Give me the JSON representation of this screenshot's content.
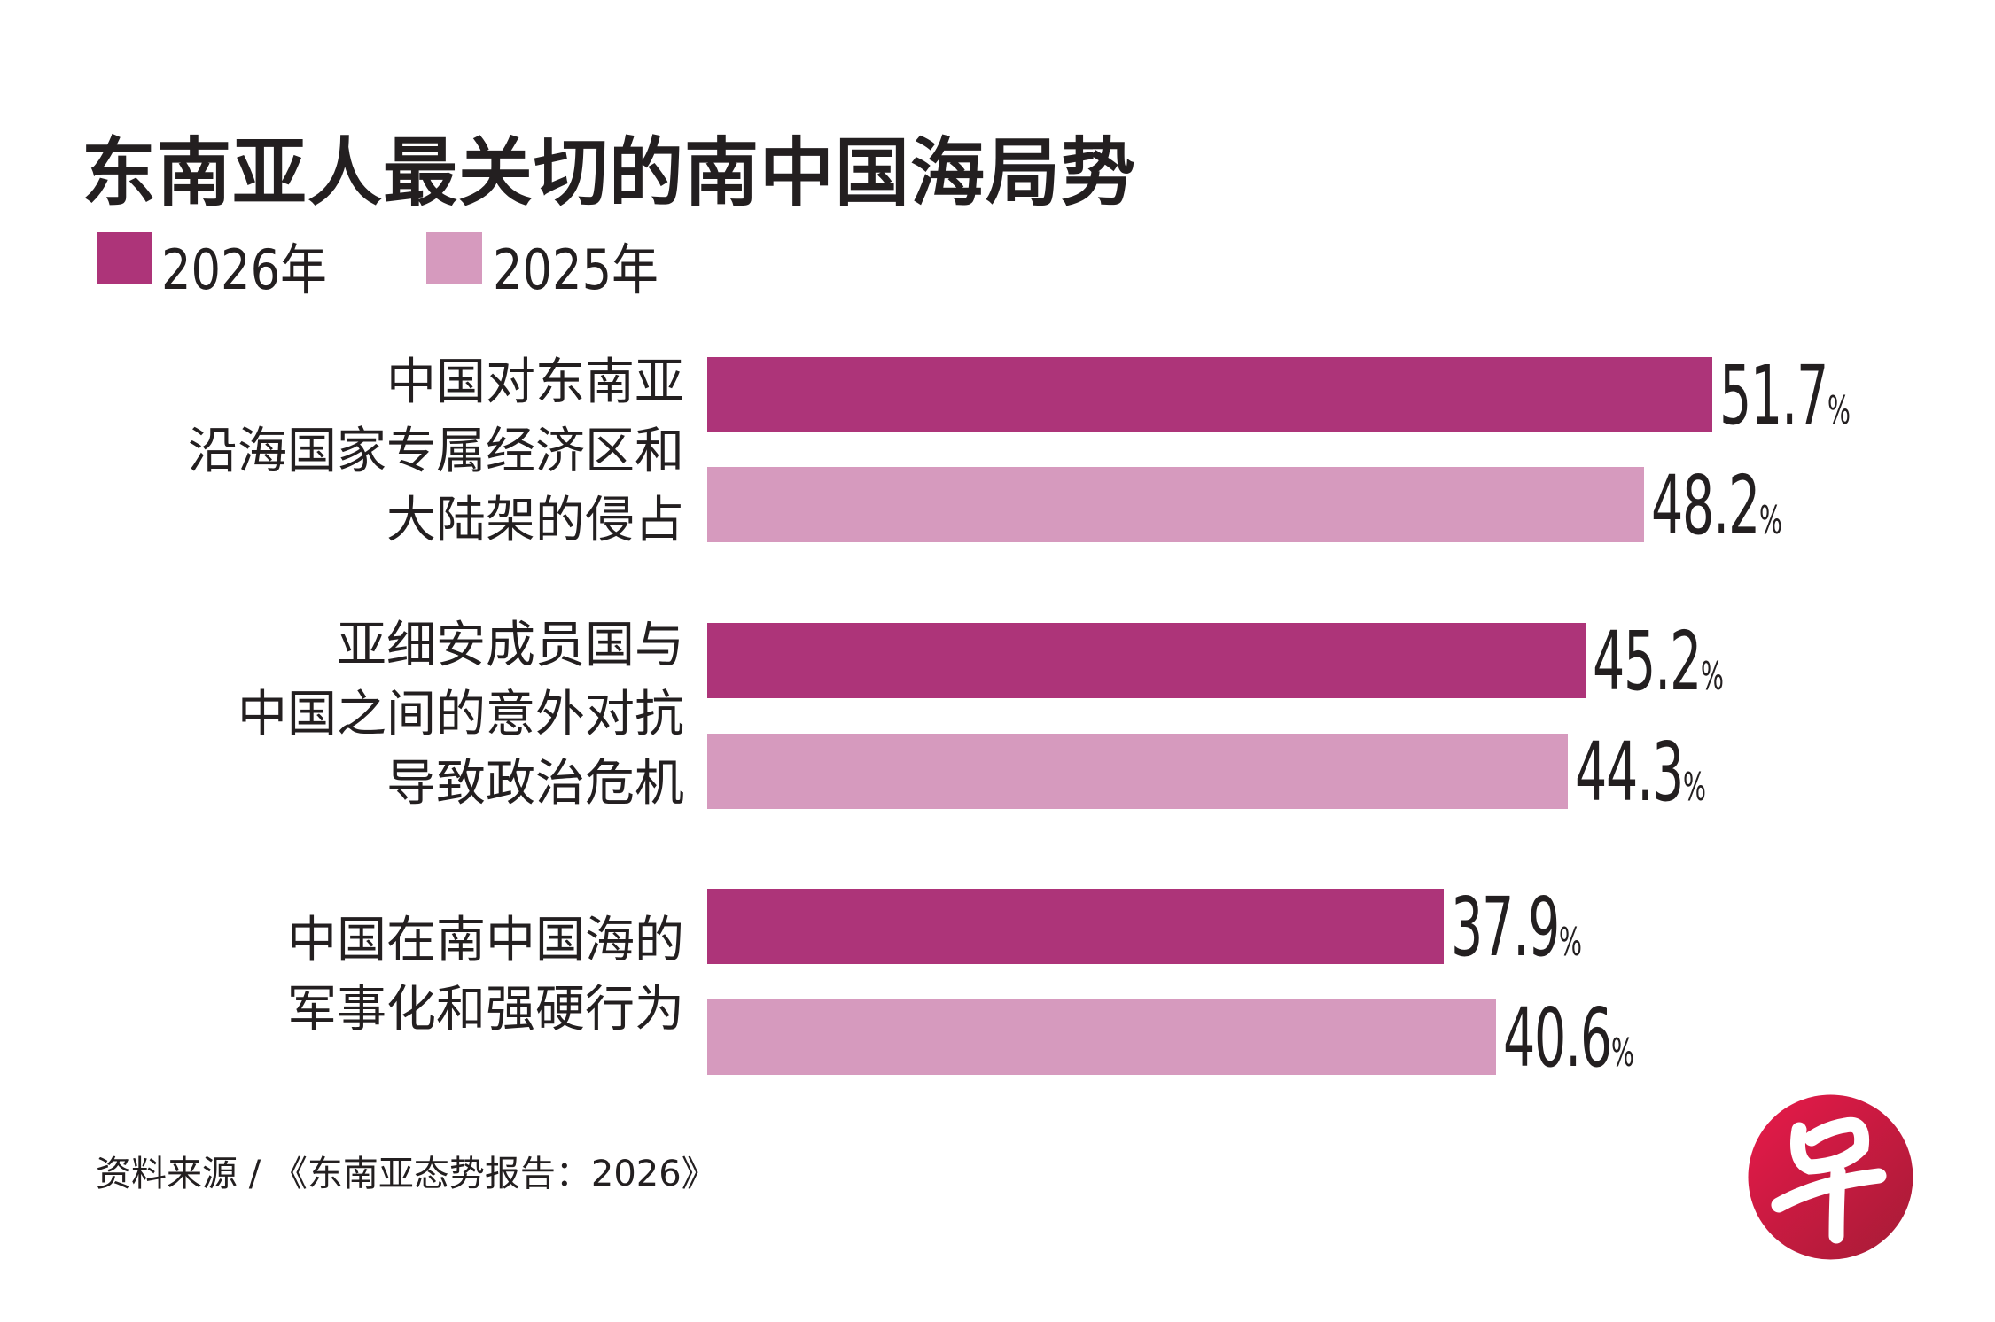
{
  "chart_data": {
    "type": "bar",
    "orientation": "horizontal",
    "title": "东南亚人最关切的南中国海局势",
    "categories": [
      [
        "中国对东南亚",
        "沿海国家专属经济区和",
        "大陆架的侵占"
      ],
      [
        "亚细安成员国与",
        "中国之间的意外对抗",
        "导致政治危机"
      ],
      [
        "中国在南中国海的",
        "军事化和强硬行为"
      ]
    ],
    "series": [
      {
        "name": "2026年",
        "color": "#AD3479",
        "values": [
          51.7,
          45.2,
          37.9
        ]
      },
      {
        "name": "2025年",
        "color": "#D69ABE",
        "values": [
          48.2,
          44.3,
          40.6
        ]
      }
    ],
    "value_suffix": "%",
    "grid": false,
    "legend_position": "top-left",
    "source": "资料来源 / 《东南亚态势报告：2026》"
  },
  "logo": {
    "text": "早",
    "color": "#D21F45"
  }
}
